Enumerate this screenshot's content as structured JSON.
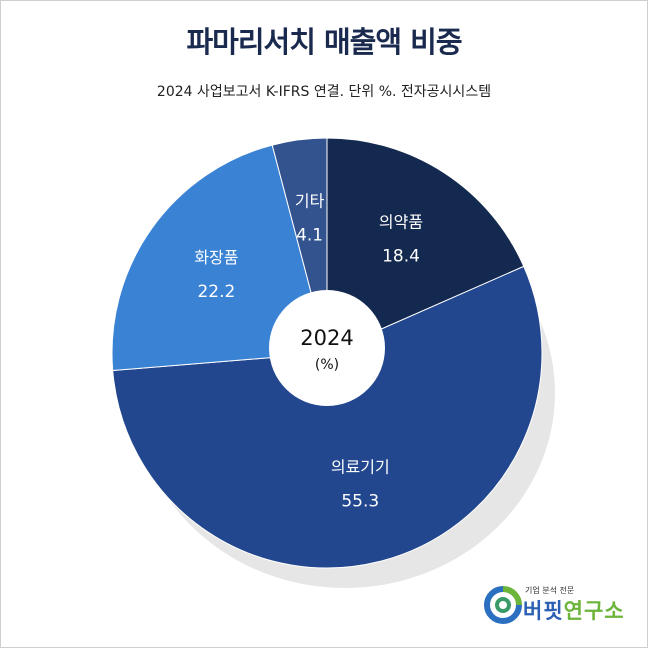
{
  "chart_data": {
    "type": "pie",
    "variant": "donut",
    "title": "파마리서치 매출액 비중",
    "subtitle": "2024 사업보고서 K-IFRS 연결. 단위 %. 전자공시시스템",
    "center_label": "2024",
    "center_sublabel": "(%)",
    "categories": [
      "의약품",
      "의료기기",
      "화장품",
      "기타"
    ],
    "values": [
      18.4,
      55.3,
      22.2,
      4.1
    ],
    "colors": [
      "#13294f",
      "#22478f",
      "#3a82d4",
      "#33538f"
    ],
    "start_angle": "top",
    "direction": "clockwise"
  },
  "logo": {
    "tagline": "기업 분석 전문",
    "name_part1": "버핏",
    "name_part2": "연구소"
  }
}
